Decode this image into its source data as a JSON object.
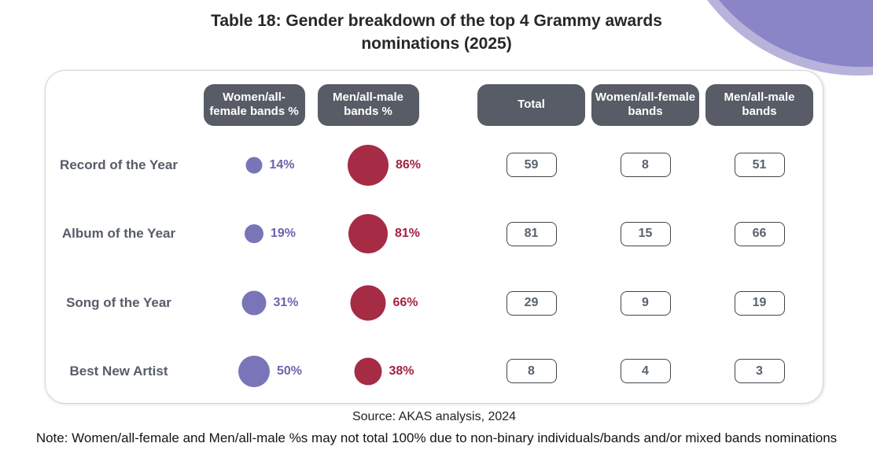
{
  "page": {
    "title": "Table 18: Gender breakdown of the top 4 Grammy awards nominations (2025)",
    "source": "Source: AKAS analysis, 2024",
    "note": "Note: Women/all-female and Men/all-male %s may not total 100% due to non-binary individuals/bands and/or mixed bands nominations"
  },
  "chart_data": {
    "type": "table",
    "subtype": "bubble-table",
    "title": "Table 18: Gender breakdown of the top 4 Grammy awards nominations (2025)",
    "columns": [
      "Women/all-female bands %",
      "Men/all-male bands %",
      "Total",
      "Women/all-female bands",
      "Men/all-male bands"
    ],
    "rows": [
      {
        "category": "Record of the Year",
        "women_pct": 14,
        "men_pct": 86,
        "total": 59,
        "women": 8,
        "men": 51
      },
      {
        "category": "Album of the Year",
        "women_pct": 19,
        "men_pct": 81,
        "total": 81,
        "women": 15,
        "men": 66
      },
      {
        "category": "Song of the Year",
        "women_pct": 31,
        "men_pct": 66,
        "total": 29,
        "women": 9,
        "men": 19
      },
      {
        "category": "Best New Artist",
        "women_pct": 50,
        "men_pct": 38,
        "total": 8,
        "women": 4,
        "men": 3
      }
    ],
    "legend_position": "none",
    "bubble_scale": "area proportional to percentage",
    "colors": {
      "women_bubble": "#7a74b8",
      "women_text": "#6b64ae",
      "men_bubble": "#a62b45",
      "men_text": "#a32342",
      "header_pill": "#575c66",
      "corner_main": "#8a85c7",
      "corner_light": "#b7b3db"
    }
  }
}
